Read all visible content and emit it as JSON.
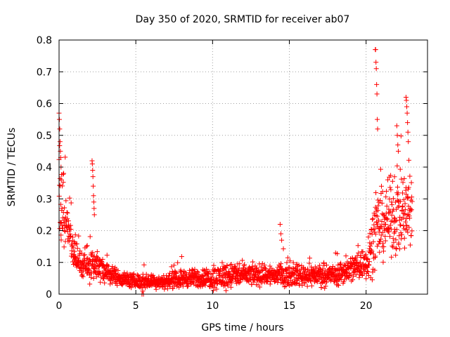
{
  "colors": {
    "series": "#ff0000",
    "axis": "#000000",
    "grid": "#a0a0a0",
    "background": "#ffffff"
  },
  "chart_data": {
    "type": "scatter",
    "title": "Day 350 of 2020, SRMTID for receiver ab07",
    "xlabel": "GPS time / hours",
    "ylabel": "SRMTID / TECUs",
    "xlim": [
      0,
      24
    ],
    "ylim": [
      0,
      0.8
    ],
    "xticks": [
      0,
      5,
      10,
      15,
      20
    ],
    "xtick_labels": [
      "0",
      "5",
      "10",
      "15",
      "20"
    ],
    "yticks": [
      0,
      0.1,
      0.2,
      0.3,
      0.4,
      0.5,
      0.6,
      0.7,
      0.8
    ],
    "ytick_labels": [
      "0",
      "0.1",
      "0.2",
      "0.3",
      "0.4",
      "0.5",
      "0.6",
      "0.7",
      "0.8"
    ],
    "grid": true,
    "marker": "plus",
    "series": [
      {
        "name": "SRMTID ab07",
        "profile": {
          "x": [
            0.0,
            0.3,
            0.6,
            1.0,
            1.5,
            2.0,
            2.5,
            3.0,
            4.0,
            5.0,
            6.0,
            7.0,
            8.0,
            9.0,
            10.0,
            11.0,
            12.0,
            13.0,
            14.0,
            15.0,
            16.0,
            17.0,
            18.0,
            19.0,
            19.5,
            20.0,
            20.5,
            21.0,
            21.5,
            22.0,
            22.5,
            23.0
          ],
          "base": [
            0.32,
            0.24,
            0.2,
            0.12,
            0.09,
            0.1,
            0.09,
            0.07,
            0.05,
            0.04,
            0.04,
            0.04,
            0.05,
            0.05,
            0.05,
            0.06,
            0.06,
            0.06,
            0.06,
            0.06,
            0.06,
            0.06,
            0.06,
            0.08,
            0.09,
            0.1,
            0.18,
            0.22,
            0.24,
            0.26,
            0.25,
            0.25
          ],
          "spread": [
            0.14,
            0.1,
            0.06,
            0.04,
            0.03,
            0.05,
            0.04,
            0.03,
            0.02,
            0.02,
            0.02,
            0.02,
            0.025,
            0.025,
            0.03,
            0.04,
            0.03,
            0.03,
            0.03,
            0.03,
            0.03,
            0.03,
            0.03,
            0.04,
            0.04,
            0.05,
            0.1,
            0.1,
            0.1,
            0.12,
            0.12,
            0.12
          ]
        },
        "bursts": [
          {
            "x_from": 0.0,
            "x_to": 0.15,
            "values": [
              0.57,
              0.55,
              0.52,
              0.48,
              0.45,
              0.43,
              0.4,
              0.36
            ]
          },
          {
            "x_from": 2.15,
            "x_to": 2.3,
            "values": [
              0.42,
              0.41,
              0.39,
              0.37,
              0.34,
              0.31,
              0.29,
              0.27,
              0.25
            ]
          },
          {
            "x_from": 20.6,
            "x_to": 20.75,
            "values": [
              0.77,
              0.77,
              0.73,
              0.71,
              0.66,
              0.63,
              0.55,
              0.52
            ]
          },
          {
            "x_from": 22.6,
            "x_to": 22.75,
            "values": [
              0.62,
              0.61,
              0.59,
              0.57,
              0.54,
              0.51,
              0.48
            ]
          },
          {
            "x_from": 22.0,
            "x_to": 22.1,
            "values": [
              0.53,
              0.5,
              0.47,
              0.45
            ]
          },
          {
            "x_from": 14.4,
            "x_to": 14.5,
            "values": [
              0.22,
              0.19,
              0.17
            ]
          },
          {
            "x_from": 5.4,
            "x_to": 5.5,
            "values": [
              0.0,
              0.01,
              0.0
            ]
          }
        ]
      }
    ]
  }
}
